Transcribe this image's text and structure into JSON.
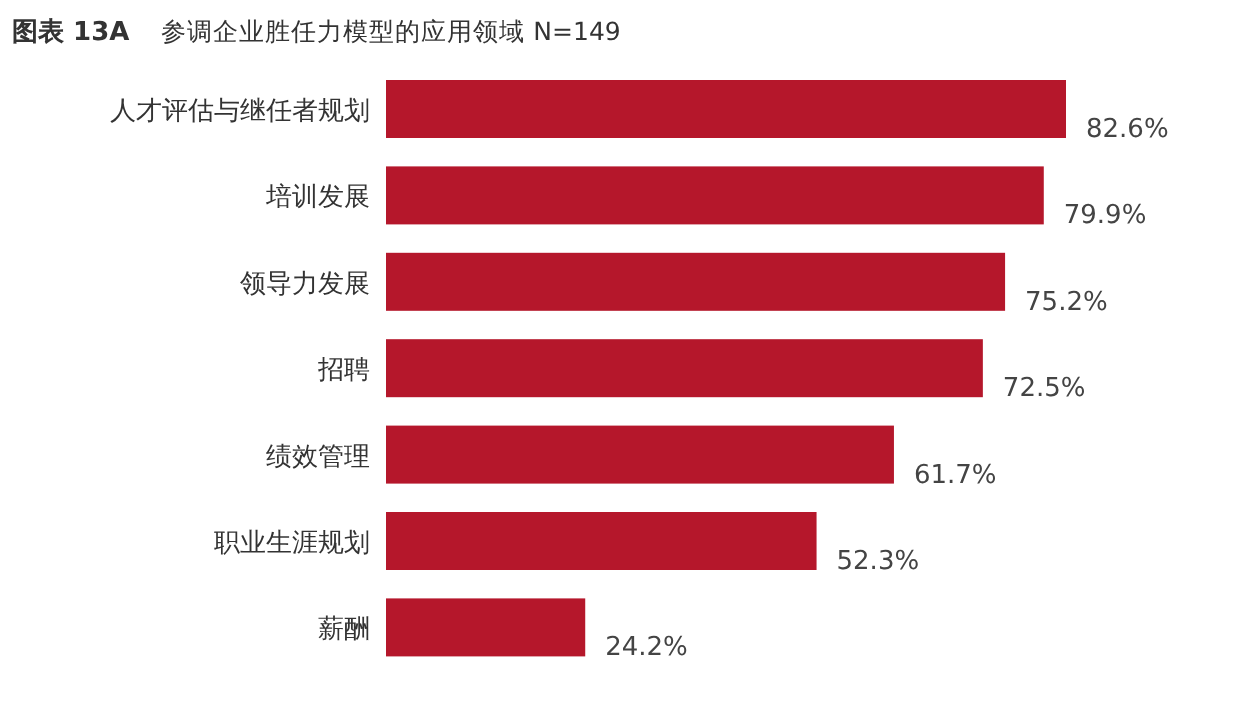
{
  "chart_data": {
    "type": "bar",
    "orientation": "horizontal",
    "title": "图表 13A",
    "subtitle": "参调企业胜任力模型的应用领域 N=149",
    "categories": [
      "人才评估与继任者规划",
      "培训发展",
      "领导力发展",
      "招聘",
      "绩效管理",
      "职业生涯规划",
      "薪酬"
    ],
    "values": [
      82.6,
      79.9,
      75.2,
      72.5,
      61.7,
      52.3,
      24.2
    ],
    "value_labels": [
      "82.6%",
      "79.9%",
      "75.2%",
      "72.5%",
      "61.7%",
      "52.3%",
      "24.2%"
    ],
    "color": "#b5172b"
  }
}
